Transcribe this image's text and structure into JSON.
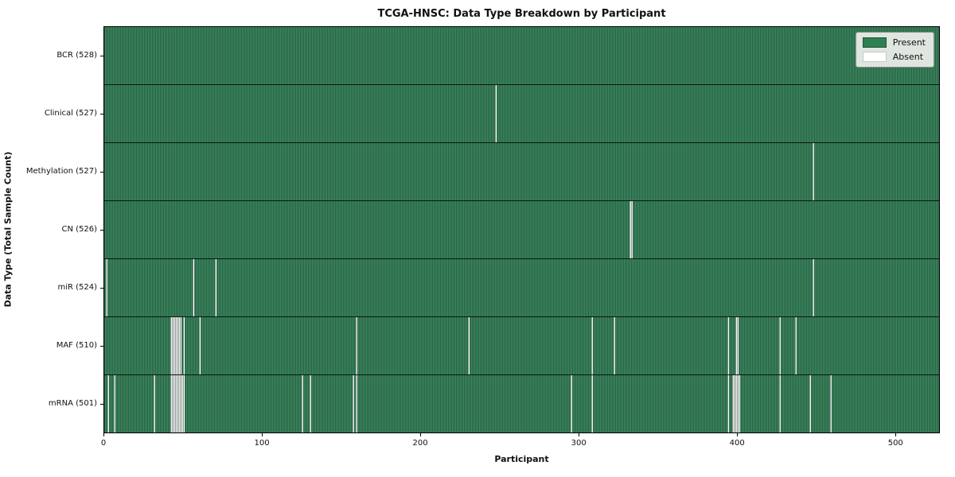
{
  "title": "TCGA-HNSC: Data Type Breakdown by Participant",
  "axes": {
    "x_label": "Participant",
    "y_label": "Data Type (Total Sample Count)",
    "x_ticks": [
      0,
      100,
      200,
      300,
      400,
      500
    ],
    "x_max": 528
  },
  "legend": {
    "items": [
      {
        "label": "Present",
        "color": "#2e8053",
        "border": "#1e5636"
      },
      {
        "label": "Absent",
        "color": "#ffffff",
        "border": "#c8c8c8"
      }
    ]
  },
  "colors": {
    "present_dark_stripe": "#276044",
    "present_light_stripe": "#3e8b61",
    "absent": "#f8f8f8",
    "row_separator": "#000000"
  },
  "chart_data": {
    "type": "heatmap",
    "title": "TCGA-HNSC: Data Type Breakdown by Participant",
    "xlabel": "Participant",
    "ylabel": "Data Type (Total Sample Count)",
    "x_range": [
      0,
      528
    ],
    "legend": [
      "Present",
      "Absent"
    ],
    "legend_position": "upper right",
    "rows": [
      {
        "label": "BCR (528)",
        "total": 528,
        "missing": []
      },
      {
        "label": "Clinical (527)",
        "total": 527,
        "missing": [
          247
        ]
      },
      {
        "label": "Methylation (527)",
        "total": 527,
        "missing": [
          448
        ]
      },
      {
        "label": "CN (526)",
        "total": 526,
        "missing": [
          332,
          333
        ]
      },
      {
        "label": "miR (524)",
        "total": 524,
        "missing": [
          1,
          56,
          70,
          448
        ]
      },
      {
        "label": "MAF (510)",
        "total": 510,
        "missing": [
          42,
          43,
          44,
          45,
          46,
          47,
          48,
          50,
          60,
          159,
          230,
          308,
          322,
          394,
          399,
          400,
          427,
          437
        ]
      },
      {
        "label": "mRNA (501)",
        "total": 501,
        "missing": [
          2,
          6,
          31,
          42,
          43,
          44,
          45,
          46,
          47,
          48,
          49,
          50,
          125,
          130,
          157,
          159,
          295,
          308,
          394,
          397,
          398,
          399,
          400,
          401,
          427,
          446,
          459
        ]
      }
    ]
  }
}
